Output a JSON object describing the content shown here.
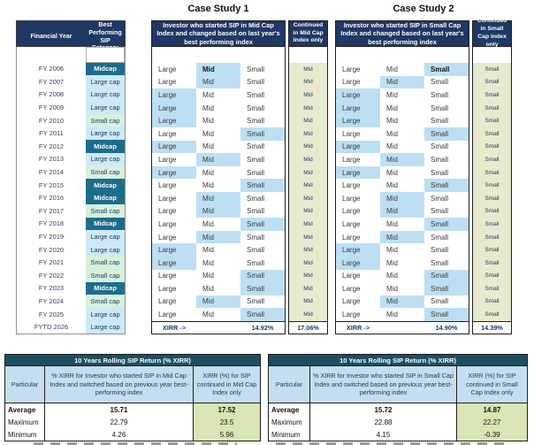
{
  "titles": {
    "case_study_1": "Case Study 1",
    "case_study_2": "Case Study 2"
  },
  "left_table": {
    "headers": {
      "year": "Financial Year",
      "category": "Best Performing SIP Category"
    },
    "rows": [
      {
        "year": "FY 2006",
        "category": "Midcap",
        "style": "dark"
      },
      {
        "year": "FY 2007",
        "category": "Large cap",
        "style": "blue"
      },
      {
        "year": "FY 2008",
        "category": "Large cap",
        "style": "blue"
      },
      {
        "year": "FY 2009",
        "category": "Large cap",
        "style": "blue"
      },
      {
        "year": "FY 2010",
        "category": "Small cap",
        "style": "green"
      },
      {
        "year": "FY 2011",
        "category": "Large cap",
        "style": "blue"
      },
      {
        "year": "FY 2012",
        "category": "Midcap",
        "style": "dark"
      },
      {
        "year": "FY 2013",
        "category": "Large cap",
        "style": "blue"
      },
      {
        "year": "FY 2014",
        "category": "Small cap",
        "style": "green"
      },
      {
        "year": "FY 2015",
        "category": "Midcap",
        "style": "dark"
      },
      {
        "year": "FY 2016",
        "category": "Midcap",
        "style": "dark"
      },
      {
        "year": "FY 2017",
        "category": "Small cap",
        "style": "green"
      },
      {
        "year": "FY 2018",
        "category": "Midcap",
        "style": "dark"
      },
      {
        "year": "FY 2019",
        "category": "Large cap",
        "style": "blue"
      },
      {
        "year": "FY 2020",
        "category": "Large cap",
        "style": "blue"
      },
      {
        "year": "FY 2021",
        "category": "Small cap",
        "style": "green"
      },
      {
        "year": "FY 2022",
        "category": "Small cap",
        "style": "green"
      },
      {
        "year": "FY 2023",
        "category": "Midcap",
        "style": "dark"
      },
      {
        "year": "FY 2024",
        "category": "Small cap",
        "style": "green"
      },
      {
        "year": "FY 2025",
        "category": "Large cap",
        "style": "blue"
      },
      {
        "year": "FYTD 2026",
        "category": "Large cap",
        "style": "blue"
      }
    ]
  },
  "case_study_1": {
    "header_main": "Investor who started SIP in Mid Cap Index and changed based on last year's best performing index",
    "header_continued": "Continued in Mid Cap Index only",
    "options": [
      "Large",
      "Mid",
      "Small"
    ],
    "picks": [
      "Mid",
      "Mid",
      "Large",
      "Large",
      "Large",
      "Small",
      "Large",
      "Mid",
      "Large",
      "Small",
      "Mid",
      "Mid",
      "Small",
      "Mid",
      "Large",
      "Large",
      "Small",
      "Small",
      "Mid",
      "Small"
    ],
    "continued_value": "Mid",
    "xirr_label": "XIRR ->",
    "xirr_switched": "14.92%",
    "xirr_continued": "17.06%"
  },
  "case_study_2": {
    "header_main": "Investor who started SIP in Small Cap Index and changed based on last year's best performing index",
    "header_continued": "Continued in Small Cap Index only",
    "options": [
      "Large",
      "Mid",
      "Small"
    ],
    "picks": [
      "Small",
      "Mid",
      "Large",
      "Large",
      "Large",
      "Small",
      "Large",
      "Mid",
      "Large",
      "Small",
      "Mid",
      "Mid",
      "Small",
      "Mid",
      "Large",
      "Large",
      "Small",
      "Small",
      "Mid",
      "Small"
    ],
    "continued_value": "Small",
    "xirr_label": "XIRR ->",
    "xirr_switched": "14.90%",
    "xirr_continued": "14.39%"
  },
  "bottom_left": {
    "title": "10 Years Rolling SIP Return (% XIRR)",
    "col_particular": "Particular",
    "col_switched": "% XIRR for Investor who started SIP in Mid Cap Index and switched based on previous year best-performing index",
    "col_continued": "XIRR (%) for SIP continued in Mid Cap Index only",
    "rows": [
      {
        "label": "Average",
        "switched": "15.71",
        "continued": "17.52"
      },
      {
        "label": "Maximum",
        "switched": "22.79",
        "continued": "23.5"
      },
      {
        "label": "Minimum",
        "switched": "4.26",
        "continued": "5.96"
      }
    ]
  },
  "bottom_right": {
    "title": "10 Years Rolling SIP Return (% XIRR)",
    "col_particular": "Particular",
    "col_switched": "% XIRR for Investor who started SIP in Small Cap Index and switched based on previous year best-performing index",
    "col_continued": "XIRR (%) for SIP continued in Small Cap Index only",
    "rows": [
      {
        "label": "Average",
        "switched": "15.72",
        "continued": "14.87"
      },
      {
        "label": "Maximum",
        "switched": "22.88",
        "continued": "22.27"
      },
      {
        "label": "Minimum",
        "switched": "4.15",
        "continued": "-0.39"
      }
    ]
  },
  "colors": {
    "navy": "#1F3864",
    "teal": "#1C6D8D",
    "light_blue": "#CDE9F7",
    "pale_green": "#D8F0DC",
    "highlight": "#BDDFF3",
    "khaki": "#E8EACF",
    "bottom_title": "#1D4F61",
    "bottom_header": "#C4DEEF",
    "bottom_green": "#D8E5B4",
    "border_dark": "#1F1F1F",
    "border_gray": "#909090"
  }
}
